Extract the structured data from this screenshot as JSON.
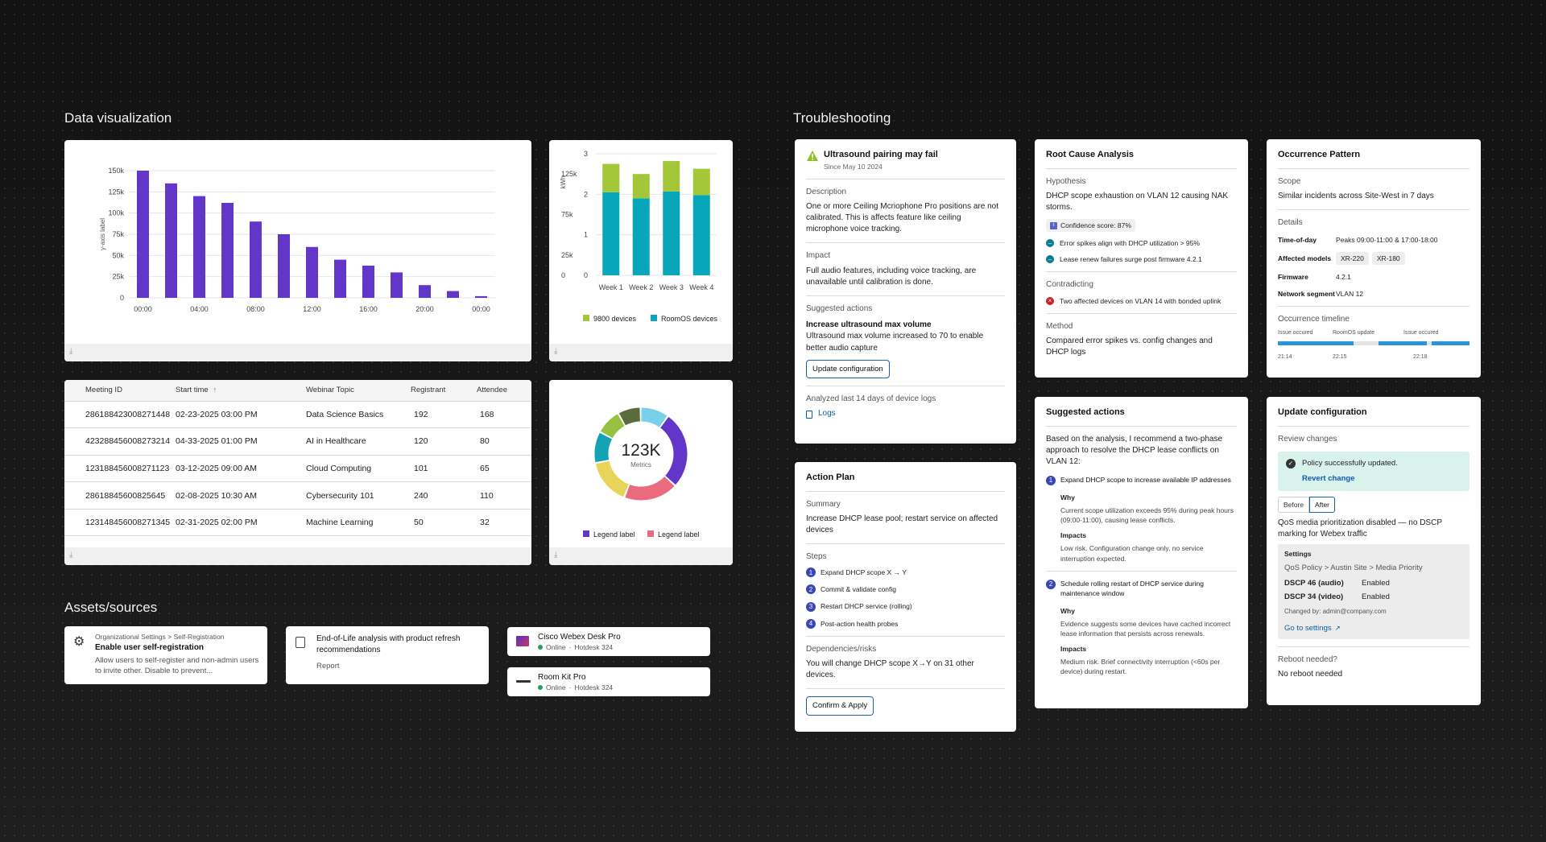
{
  "sections": {
    "data_viz": "Data visualization",
    "troubleshooting": "Troubleshooting",
    "assets": "Assets/sources"
  },
  "colors": {
    "purple": "#6236c8",
    "lime": "#a4c639",
    "teal": "#07a6ba",
    "blue": "#2da6e4",
    "accent": "#1a5fb4"
  },
  "icons": {
    "download": "download-icon",
    "warning": "warning-icon",
    "doc": "document-icon",
    "gear": "gear-icon",
    "report": "report-icon",
    "check": "checkmark-icon",
    "minus": "minus-circle-icon",
    "error": "error-icon",
    "info": "info-icon",
    "external": "external-link-icon"
  },
  "chart_data": [
    {
      "type": "bar",
      "categories": [
        "00:00",
        "",
        "04:00",
        "",
        "08:00",
        "",
        "12:00",
        "",
        "16:00",
        "",
        "20:00",
        "",
        "00:00"
      ],
      "values": [
        150000,
        135000,
        120000,
        112000,
        90000,
        75000,
        60000,
        45000,
        38000,
        30000,
        15000,
        8000,
        2000
      ],
      "ylabel": "y-axis label",
      "yticks": [
        "0",
        "25k",
        "50k",
        "75k",
        "100k",
        "125k",
        "150k"
      ],
      "ylim": [
        0,
        150000
      ],
      "grid": true
    },
    {
      "type": "bar",
      "stacked": true,
      "categories": [
        "Week 1",
        "Week 2",
        "Week 3",
        "Week 4"
      ],
      "series": [
        {
          "name": "RoomOS devices",
          "values": [
            2.05,
            1.9,
            2.07,
            1.98
          ]
        },
        {
          "name": "9800 devices",
          "values": [
            0.7,
            0.6,
            0.75,
            0.65
          ]
        }
      ],
      "ylabel": "kWh",
      "yticks_left": [
        "0",
        "25k",
        "75k",
        "125k"
      ],
      "yticks_right": [
        "0",
        "1",
        "2",
        "3"
      ],
      "ylim": [
        0,
        3
      ],
      "legend": "bottom",
      "grid": true
    },
    {
      "type": "pie",
      "donut": true,
      "center_value": "123K",
      "center_label": "Metrics",
      "slices": [
        {
          "name": "Legend label",
          "value": 27,
          "color": "#6236c8"
        },
        {
          "name": "Legend label",
          "value": 19,
          "color": "#ea6b7e"
        },
        {
          "name": "",
          "value": 16,
          "color": "#e8d45a"
        },
        {
          "name": "",
          "value": 11,
          "color": "#12a4b4"
        },
        {
          "name": "",
          "value": 9,
          "color": "#97c23f"
        },
        {
          "name": "",
          "value": 8,
          "color": "#5a6b3c"
        },
        {
          "name": "",
          "value": 10,
          "color": "#7ad0ea"
        }
      ],
      "legend": "bottom"
    }
  ],
  "bar_chart": {
    "ylabel": "y-axis label"
  },
  "stacked_chart": {
    "ylabel": "kWh",
    "legend": [
      "9800 devices",
      "RoomOS devices"
    ]
  },
  "donut": {
    "center_value": "123K",
    "center_label": "Metrics",
    "legend": [
      "Legend label",
      "Legend label"
    ]
  },
  "table": {
    "headers": [
      "Meeting ID",
      "Start time",
      "Webinar Topic",
      "Registrant",
      "Attendee"
    ],
    "sort_indicator": "↑",
    "rows": [
      [
        "286188423008271448",
        "02-23-2025 03:00 PM",
        "Data Science Basics",
        "192",
        "168"
      ],
      [
        "423288456008273214",
        "04-33-2025 01:00 PM",
        "AI in Healthcare",
        "120",
        "80"
      ],
      [
        "123188456008271123",
        "03-12-2025 09:00 AM",
        "Cloud Computing",
        "101",
        "65"
      ],
      [
        "28618845600825645",
        "02-08-2025 10:30 AM",
        "Cybersecurity 101",
        "240",
        "110"
      ],
      [
        "123148456008271345",
        "02-31-2025 02:00 PM",
        "Machine Learning",
        "50",
        "32"
      ]
    ]
  },
  "assets": {
    "settings_card": {
      "breadcrumb": "Organizational Settings > Self-Registration",
      "title": "Enable user self-registration",
      "desc": "Allow users to self-register and non-admin users to invite other. Disable to prevent..."
    },
    "report_card": {
      "title": "End-of-Life analysis with product refresh recommendations",
      "type": "Report"
    },
    "devices": [
      {
        "name": "Cisco Webex Desk Pro",
        "status": "Online",
        "location": "Hotdesk 324"
      },
      {
        "name": "Room Kit Pro",
        "status": "Online",
        "location": "Hotdesk 324"
      }
    ]
  },
  "alert_card": {
    "title": "Ultrasound pairing may fail",
    "date": "Since May 10 2024",
    "description_label": "Description",
    "description": "One or more Ceiling Mcriophone Pro positions are not calibrated. This is affects feature like ceiling microphone voice tracking.",
    "impact_label": "Impact",
    "impact": "Full audio features, including voice tracking, are unavailable until calibration is done.",
    "suggested_label": "Suggested actions",
    "action_title": "Increase ultrasound max volume",
    "action_text": "Ultrasound max volume increased to 70 to enable better audio capture",
    "button": "Update configuration",
    "analyzed": "Analyzed last 14 days of device logs",
    "logs_link": "Logs"
  },
  "action_plan": {
    "title": "Action Plan",
    "summary_label": "Summary",
    "summary": "Increase DHCP lease pool; restart service on affected devices",
    "steps_label": "Steps",
    "steps": [
      "Expand DHCP scope X → Y",
      "Commit & validate config",
      "Restart DHCP service (rolling)",
      "Post-action health probes"
    ],
    "risks_label": "Dependencies/risks",
    "risks": "You will change DHCP scope X→Y on 31 other devices.",
    "button": "Confirm & Apply"
  },
  "rca": {
    "title": "Root Cause Analysis",
    "hypothesis_label": "Hypothesis",
    "hypothesis": "DHCP scope exhaustion on VLAN 12 causing NAK storms.",
    "confidence": "Confidence score: 87%",
    "supporting": [
      "Error spikes align with DHCP utilization > 95%",
      "Lease renew failures surge post firmware 4.2.1"
    ],
    "contradicting_label": "Contradicting",
    "contradicting": "Two affected devices on VLAN 14 with bonded uplink",
    "method_label": "Method",
    "method": "Compared error spikes vs. config changes and DHCP logs"
  },
  "suggested": {
    "title": "Suggested actions",
    "intro": "Based on the analysis, I recommend a two-phase approach to resolve the DHCP lease conflicts on VLAN 12:",
    "items": [
      {
        "num": "1",
        "title": "Expand DHCP scope to increase available IP addresses",
        "why_label": "Why",
        "why": "Current scope utilization exceeds 95% during peak hours (09:00-11:00), causing lease conflicts.",
        "impacts_label": "Impacts",
        "impacts": "Low risk. Configuration change only, no service interruption expected."
      },
      {
        "num": "2",
        "title": "Schedule rolling restart of DHCP service during maintenance window",
        "why_label": "Why",
        "why": "Evidence suggests some devices have cached incorrect lease information that persists across renewals.",
        "impacts_label": "Impacts",
        "impacts": "Medium risk. Brief connectivity interruption (<60s per device) during restart."
      }
    ]
  },
  "occurrence": {
    "title": "Occurrence Pattern",
    "scope_label": "Scope",
    "scope": "Similar incidents across Site-West in 7 days",
    "details_label": "Details",
    "details": [
      {
        "k": "Time-of-day",
        "v": "Peaks 09:00-11:00 & 17:00-18:00"
      },
      {
        "k": "Affected models",
        "chips": [
          "XR-220",
          "XR-180"
        ]
      },
      {
        "k": "Firmware",
        "v": "4.2.1"
      },
      {
        "k": "Network segment",
        "v": "VLAN 12"
      }
    ],
    "timeline_label": "Occurrence timeline",
    "timeline_events": [
      "Issue occured",
      "RoomOS update",
      "Issue occured"
    ],
    "timeline_times": [
      "21:14",
      "22:15",
      "22:18"
    ]
  },
  "update_config": {
    "title": "Update configuration",
    "review_label": "Review changes",
    "success": "Policy successfully updated.",
    "revert": "Revert change",
    "toggle": [
      "Before",
      "After"
    ],
    "change_desc": "QoS media prioritization disabled — no DSCP marking for Webex traffic",
    "settings_label": "Settings",
    "settings_path": "QoS Policy > Austin Site > Media Priority",
    "settings": [
      {
        "k": "DSCP 46 (audio)",
        "v": "Enabled"
      },
      {
        "k": "DSCP 34 (video)",
        "v": "Enabled"
      }
    ],
    "changed_by": "Changed by: admin@company.com",
    "goto": "Go to settings",
    "reboot_label": "Reboot needed?",
    "reboot": "No reboot needed"
  }
}
